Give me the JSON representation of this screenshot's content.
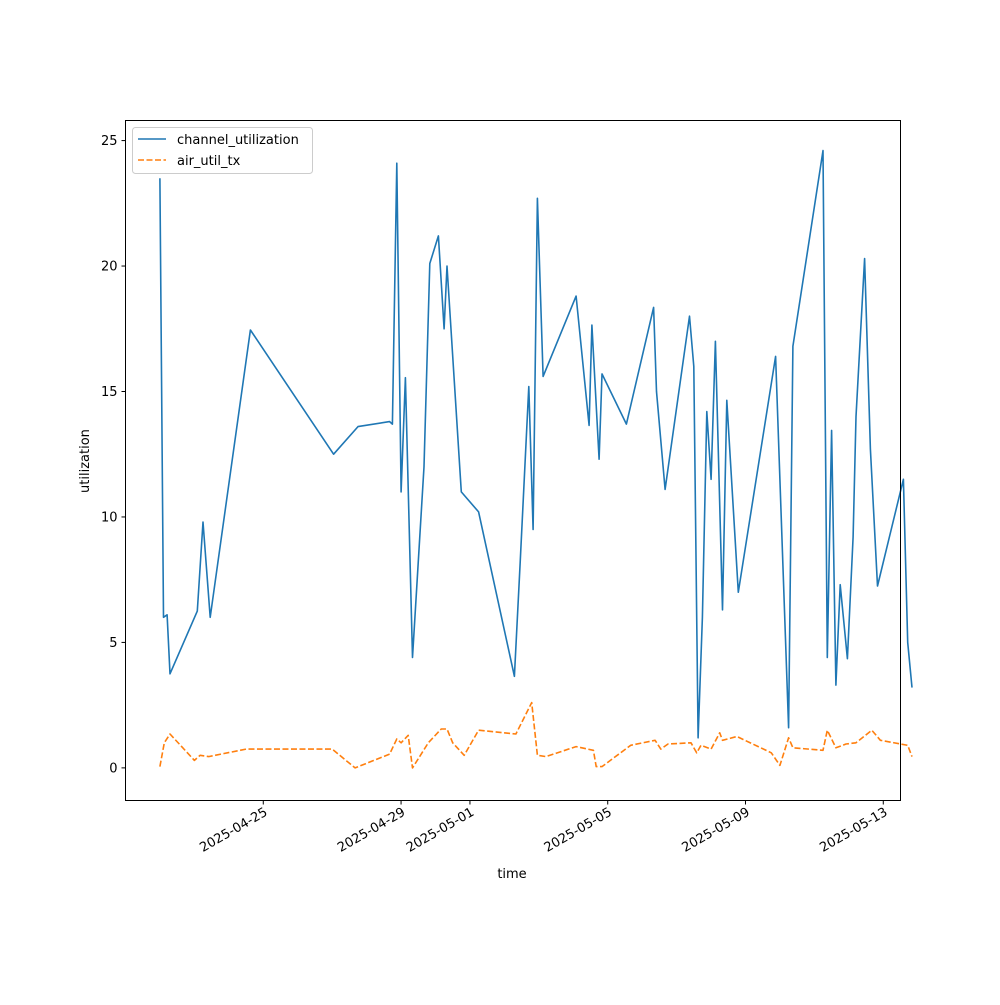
{
  "chart_data": {
    "type": "line",
    "xlabel": "time",
    "ylabel": "utilization",
    "x_type": "date",
    "xlim": [
      "2025-04-21T00:00",
      "2025-05-13T12:00"
    ],
    "ylim": [
      -1.3,
      25.8
    ],
    "y_ticks": [
      0,
      5,
      10,
      15,
      20,
      25
    ],
    "x_ticks": [
      "2025-04-25",
      "2025-04-29",
      "2025-05-01",
      "2025-05-05",
      "2025-05-09",
      "2025-05-13"
    ],
    "legend_position": "top-left",
    "grid": false,
    "series": [
      {
        "name": "channel_utilization",
        "color": "#1f77b4",
        "dash": "solid",
        "points": [
          [
            "2025-04-22T00:00",
            23.5
          ],
          [
            "2025-04-22T02:30",
            6.0
          ],
          [
            "2025-04-22T05:00",
            6.1
          ],
          [
            "2025-04-22T07:00",
            3.75
          ],
          [
            "2025-04-23T02:00",
            6.25
          ],
          [
            "2025-04-23T06:00",
            9.8
          ],
          [
            "2025-04-23T11:00",
            6.0
          ],
          [
            "2025-04-24T15:00",
            17.45
          ],
          [
            "2025-04-27T01:00",
            12.5
          ],
          [
            "2025-04-27T18:00",
            13.6
          ],
          [
            "2025-04-28T16:00",
            13.8
          ],
          [
            "2025-04-28T18:00",
            13.7
          ],
          [
            "2025-04-28T21:00",
            24.1
          ],
          [
            "2025-04-29T00:00",
            11.0
          ],
          [
            "2025-04-29T03:00",
            15.55
          ],
          [
            "2025-04-29T08:00",
            4.4
          ],
          [
            "2025-04-29T16:00",
            12.0
          ],
          [
            "2025-04-29T20:00",
            20.1
          ],
          [
            "2025-04-30T02:00",
            21.2
          ],
          [
            "2025-04-30T06:00",
            17.5
          ],
          [
            "2025-04-30T08:00",
            20.0
          ],
          [
            "2025-04-30T18:00",
            11.0
          ],
          [
            "2025-05-01T06:00",
            10.2
          ],
          [
            "2025-05-02T07:00",
            3.65
          ],
          [
            "2025-05-02T11:00",
            8.2
          ],
          [
            "2025-05-02T17:00",
            15.2
          ],
          [
            "2025-05-02T20:00",
            9.5
          ],
          [
            "2025-05-02T23:00",
            22.7
          ],
          [
            "2025-05-03T03:00",
            15.6
          ],
          [
            "2025-05-04T02:00",
            18.8
          ],
          [
            "2025-05-04T11:00",
            13.65
          ],
          [
            "2025-05-04T13:00",
            17.65
          ],
          [
            "2025-05-04T18:00",
            12.3
          ],
          [
            "2025-05-04T20:00",
            15.7
          ],
          [
            "2025-05-05T13:00",
            13.7
          ],
          [
            "2025-05-06T08:00",
            18.35
          ],
          [
            "2025-05-06T10:00",
            15.0
          ],
          [
            "2025-05-06T16:00",
            11.1
          ],
          [
            "2025-05-07T09:00",
            18.0
          ],
          [
            "2025-05-07T12:00",
            16.0
          ],
          [
            "2025-05-07T15:00",
            1.2
          ],
          [
            "2025-05-07T18:00",
            6.0
          ],
          [
            "2025-05-07T21:00",
            14.2
          ],
          [
            "2025-05-08T00:00",
            11.5
          ],
          [
            "2025-05-08T03:00",
            17.0
          ],
          [
            "2025-05-08T08:00",
            6.3
          ],
          [
            "2025-05-08T11:00",
            14.65
          ],
          [
            "2025-05-08T19:00",
            7.0
          ],
          [
            "2025-05-09T21:00",
            16.4
          ],
          [
            "2025-05-10T06:00",
            1.6
          ],
          [
            "2025-05-10T09:00",
            16.8
          ],
          [
            "2025-05-11T06:00",
            24.6
          ],
          [
            "2025-05-11T09:00",
            4.4
          ],
          [
            "2025-05-11T12:00",
            13.45
          ],
          [
            "2025-05-11T15:00",
            3.3
          ],
          [
            "2025-05-11T18:00",
            7.3
          ],
          [
            "2025-05-11T23:00",
            4.35
          ],
          [
            "2025-05-12T03:00",
            9.2
          ],
          [
            "2025-05-12T05:00",
            14.0
          ],
          [
            "2025-05-12T11:00",
            20.3
          ],
          [
            "2025-05-12T15:00",
            12.7
          ],
          [
            "2025-05-12T20:00",
            7.25
          ],
          [
            "2025-05-13T14:00",
            11.5
          ],
          [
            "2025-05-13T17:00",
            5.0
          ],
          [
            "2025-05-13T20:00",
            3.2
          ]
        ]
      },
      {
        "name": "air_util_tx",
        "color": "#ff7f0e",
        "dash": "dashed",
        "points": [
          [
            "2025-04-22T00:00",
            0.05
          ],
          [
            "2025-04-22T03:00",
            1.0
          ],
          [
            "2025-04-22T07:00",
            1.35
          ],
          [
            "2025-04-23T00:00",
            0.3
          ],
          [
            "2025-04-23T04:00",
            0.5
          ],
          [
            "2025-04-23T10:00",
            0.45
          ],
          [
            "2025-04-24T12:00",
            0.75
          ],
          [
            "2025-04-27T00:00",
            0.75
          ],
          [
            "2025-04-27T16:00",
            0.0
          ],
          [
            "2025-04-28T16:00",
            0.55
          ],
          [
            "2025-04-28T21:00",
            1.15
          ],
          [
            "2025-04-29T00:00",
            1.0
          ],
          [
            "2025-04-29T05:00",
            1.3
          ],
          [
            "2025-04-29T08:00",
            0.0
          ],
          [
            "2025-04-29T19:00",
            1.0
          ],
          [
            "2025-04-30T04:00",
            1.55
          ],
          [
            "2025-04-30T08:00",
            1.55
          ],
          [
            "2025-04-30T12:00",
            1.0
          ],
          [
            "2025-04-30T20:00",
            0.5
          ],
          [
            "2025-05-01T06:00",
            1.5
          ],
          [
            "2025-05-02T08:00",
            1.35
          ],
          [
            "2025-05-02T19:00",
            2.6
          ],
          [
            "2025-05-02T23:00",
            0.5
          ],
          [
            "2025-05-03T05:00",
            0.45
          ],
          [
            "2025-05-04T02:00",
            0.85
          ],
          [
            "2025-05-04T14:00",
            0.7
          ],
          [
            "2025-05-04T16:00",
            0.05
          ],
          [
            "2025-05-04T20:00",
            0.05
          ],
          [
            "2025-05-05T16:00",
            0.9
          ],
          [
            "2025-05-06T09:00",
            1.1
          ],
          [
            "2025-05-06T13:00",
            0.75
          ],
          [
            "2025-05-06T18:00",
            0.95
          ],
          [
            "2025-05-07T10:00",
            1.0
          ],
          [
            "2025-05-07T14:00",
            0.6
          ],
          [
            "2025-05-07T17:00",
            0.9
          ],
          [
            "2025-05-08T00:00",
            0.75
          ],
          [
            "2025-05-08T06:00",
            1.4
          ],
          [
            "2025-05-08T08:00",
            1.1
          ],
          [
            "2025-05-08T18:00",
            1.25
          ],
          [
            "2025-05-09T18:00",
            0.6
          ],
          [
            "2025-05-10T00:00",
            0.1
          ],
          [
            "2025-05-10T06:00",
            1.2
          ],
          [
            "2025-05-10T09:00",
            0.8
          ],
          [
            "2025-05-11T06:00",
            0.7
          ],
          [
            "2025-05-11T09:00",
            1.5
          ],
          [
            "2025-05-11T15:00",
            0.8
          ],
          [
            "2025-05-11T22:00",
            0.95
          ],
          [
            "2025-05-12T05:00",
            1.0
          ],
          [
            "2025-05-12T16:00",
            1.5
          ],
          [
            "2025-05-12T22:00",
            1.1
          ],
          [
            "2025-05-13T17:00",
            0.9
          ],
          [
            "2025-05-13T20:00",
            0.45
          ]
        ]
      }
    ]
  }
}
